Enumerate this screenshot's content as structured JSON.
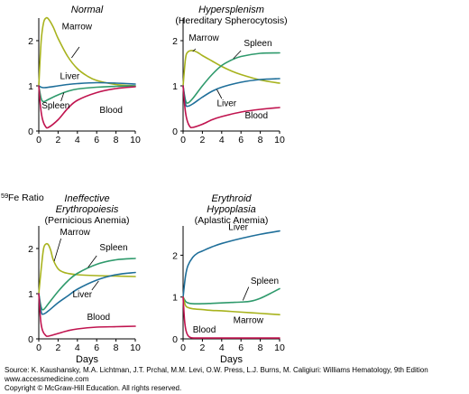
{
  "figure": {
    "y_axis_label": "Fe Ratio",
    "y_axis_label_superscript": "59",
    "x_axis_label": "Days"
  },
  "colors": {
    "Marrow": "#a8b31e",
    "Liver": "#1f6f9a",
    "Spleen": "#2f9a6c",
    "Blood": "#c0144f"
  },
  "chart_data": [
    {
      "type": "line",
      "title": "Normal",
      "subtitle": "",
      "xlabel": "",
      "ylabel": "Fe Ratio",
      "xlim": [
        0,
        10
      ],
      "ylim": [
        0,
        2.5
      ],
      "xticks": [
        0,
        2,
        4,
        6,
        8,
        10
      ],
      "yticks": [
        0,
        1,
        2
      ],
      "series": [
        {
          "name": "Marrow",
          "x": [
            0,
            0.25,
            0.5,
            0.75,
            1,
            1.5,
            2,
            3,
            4,
            5,
            6,
            8,
            10
          ],
          "y": [
            1.0,
            2.0,
            2.4,
            2.5,
            2.48,
            2.3,
            2.05,
            1.65,
            1.38,
            1.22,
            1.12,
            1.03,
            1.0
          ]
        },
        {
          "name": "Liver",
          "x": [
            0,
            0.25,
            0.5,
            1,
            2,
            3,
            4,
            6,
            8,
            10
          ],
          "y": [
            1.0,
            0.97,
            0.96,
            0.97,
            1.0,
            1.03,
            1.05,
            1.07,
            1.06,
            1.04
          ]
        },
        {
          "name": "Spleen",
          "x": [
            0,
            0.25,
            0.5,
            1,
            2,
            3,
            4,
            6,
            8,
            10
          ],
          "y": [
            1.0,
            0.72,
            0.65,
            0.7,
            0.8,
            0.88,
            0.93,
            0.97,
            0.99,
            1.0
          ]
        },
        {
          "name": "Blood",
          "x": [
            0,
            0.2,
            0.4,
            0.7,
            1,
            2,
            3,
            4,
            6,
            8,
            10
          ],
          "y": [
            1.0,
            0.5,
            0.25,
            0.1,
            0.08,
            0.25,
            0.5,
            0.68,
            0.85,
            0.94,
            0.98
          ]
        }
      ],
      "labels": [
        {
          "text": "Marrow",
          "x": 2.4,
          "y": 2.25
        },
        {
          "text": "Liver",
          "x": 2.2,
          "y": 1.15
        },
        {
          "text": "Spleen",
          "x": 0.3,
          "y": 0.5
        },
        {
          "text": "Blood",
          "x": 6.3,
          "y": 0.4
        }
      ],
      "leaders": [
        {
          "from": [
            4.2,
            1.86
          ],
          "to": [
            3.4,
            1.62
          ]
        },
        {
          "from": [
            2.3,
            0.66
          ],
          "to": [
            2.6,
            0.85
          ]
        }
      ]
    },
    {
      "type": "line",
      "title": "Hypersplenism",
      "subtitle": "(Hereditary Spherocytosis)",
      "xlabel": "",
      "ylabel": "",
      "xlim": [
        0,
        10
      ],
      "ylim": [
        0,
        2.5
      ],
      "xticks": [
        0,
        2,
        4,
        6,
        8,
        10
      ],
      "yticks": [
        0,
        1,
        2
      ],
      "series": [
        {
          "name": "Marrow",
          "x": [
            0,
            0.25,
            0.5,
            1,
            1.5,
            2,
            3,
            4,
            5,
            6,
            8,
            10
          ],
          "y": [
            1.0,
            1.6,
            1.75,
            1.78,
            1.74,
            1.67,
            1.55,
            1.43,
            1.33,
            1.25,
            1.13,
            1.06
          ]
        },
        {
          "name": "Spleen",
          "x": [
            0,
            0.25,
            0.5,
            1,
            2,
            3,
            4,
            5,
            6,
            8,
            10
          ],
          "y": [
            1.0,
            0.68,
            0.62,
            0.72,
            1.0,
            1.25,
            1.45,
            1.57,
            1.65,
            1.72,
            1.73
          ]
        },
        {
          "name": "Liver",
          "x": [
            0,
            0.25,
            0.5,
            1,
            2,
            3,
            4,
            6,
            8,
            10
          ],
          "y": [
            1.0,
            0.6,
            0.55,
            0.6,
            0.75,
            0.88,
            0.97,
            1.08,
            1.14,
            1.16
          ]
        },
        {
          "name": "Blood",
          "x": [
            0,
            0.2,
            0.4,
            0.7,
            1,
            2,
            3,
            4,
            6,
            8,
            10
          ],
          "y": [
            1.0,
            0.5,
            0.25,
            0.1,
            0.08,
            0.15,
            0.25,
            0.32,
            0.42,
            0.48,
            0.52
          ]
        }
      ],
      "labels": [
        {
          "text": "Marrow",
          "x": 0.6,
          "y": 2.0
        },
        {
          "text": "Spleen",
          "x": 6.3,
          "y": 1.88
        },
        {
          "text": "Liver",
          "x": 3.5,
          "y": 0.55
        },
        {
          "text": "Blood",
          "x": 6.4,
          "y": 0.28
        }
      ],
      "leaders": [
        {
          "from": [
            1.3,
            1.82
          ],
          "to": [
            1.0,
            1.76
          ]
        },
        {
          "from": [
            6.0,
            1.78
          ],
          "to": [
            5.2,
            1.6
          ]
        },
        {
          "from": [
            4.0,
            0.72
          ],
          "to": [
            3.5,
            0.92
          ]
        }
      ]
    },
    {
      "type": "line",
      "title": "Ineffective",
      "subtitle": "Erythropoiesis",
      "subtitle2": "(Pernicious Anemia)",
      "xlabel": "Days",
      "ylabel": "",
      "xlim": [
        0,
        10
      ],
      "ylim": [
        0,
        2.5
      ],
      "xticks": [
        0,
        2,
        4,
        6,
        8,
        10
      ],
      "yticks": [
        0,
        1,
        2
      ],
      "series": [
        {
          "name": "Marrow",
          "x": [
            0,
            0.25,
            0.5,
            0.75,
            1,
            1.25,
            1.5,
            2,
            2.5,
            3,
            4,
            6,
            8,
            10
          ],
          "y": [
            1.0,
            1.55,
            2.0,
            2.1,
            2.08,
            1.95,
            1.75,
            1.55,
            1.48,
            1.45,
            1.42,
            1.4,
            1.39,
            1.38
          ]
        },
        {
          "name": "Spleen",
          "x": [
            0,
            0.25,
            0.5,
            1,
            2,
            3,
            4,
            6,
            8,
            10
          ],
          "y": [
            1.0,
            0.7,
            0.65,
            0.78,
            1.05,
            1.28,
            1.45,
            1.65,
            1.75,
            1.78
          ]
        },
        {
          "name": "Liver",
          "x": [
            0,
            0.25,
            0.5,
            1,
            2,
            3,
            4,
            6,
            8,
            10
          ],
          "y": [
            1.0,
            0.6,
            0.55,
            0.62,
            0.8,
            0.95,
            1.1,
            1.3,
            1.42,
            1.47
          ]
        },
        {
          "name": "Blood",
          "x": [
            0,
            0.2,
            0.4,
            0.7,
            1,
            2,
            3,
            4,
            6,
            8,
            10
          ],
          "y": [
            1.0,
            0.4,
            0.18,
            0.08,
            0.06,
            0.12,
            0.18,
            0.22,
            0.26,
            0.27,
            0.28
          ]
        }
      ],
      "labels": [
        {
          "text": "Marrow",
          "x": 2.2,
          "y": 2.3
        },
        {
          "text": "Spleen",
          "x": 6.3,
          "y": 1.96
        },
        {
          "text": "Liver",
          "x": 3.5,
          "y": 0.92
        },
        {
          "text": "Blood",
          "x": 5.0,
          "y": 0.42
        }
      ],
      "leaders": [
        {
          "from": [
            2.3,
            2.22
          ],
          "to": [
            1.6,
            1.72
          ]
        },
        {
          "from": [
            6.0,
            1.84
          ],
          "to": [
            5.1,
            1.58
          ]
        },
        {
          "from": [
            5.5,
            1.08
          ],
          "to": [
            6.2,
            1.28
          ]
        }
      ]
    },
    {
      "type": "line",
      "title": "Erythroid",
      "subtitle": "Hypoplasia",
      "subtitle2": "(Aplastic Anemia)",
      "xlabel": "Days",
      "ylabel": "",
      "xlim": [
        0,
        10
      ],
      "ylim": [
        0,
        2.7
      ],
      "xticks": [
        0,
        2,
        4,
        6,
        8,
        10
      ],
      "yticks": [
        0,
        1,
        2
      ],
      "series": [
        {
          "name": "Liver",
          "x": [
            0,
            0.25,
            0.5,
            1,
            1.5,
            2,
            3,
            4,
            6,
            8,
            10
          ],
          "y": [
            1.0,
            1.5,
            1.75,
            1.95,
            2.05,
            2.1,
            2.2,
            2.28,
            2.4,
            2.5,
            2.58
          ]
        },
        {
          "name": "Spleen",
          "x": [
            0,
            0.25,
            0.5,
            1,
            2,
            3,
            4,
            5,
            6,
            7,
            8,
            9,
            10
          ],
          "y": [
            1.0,
            0.9,
            0.86,
            0.84,
            0.84,
            0.85,
            0.86,
            0.87,
            0.88,
            0.9,
            0.97,
            1.08,
            1.2
          ]
        },
        {
          "name": "Marrow",
          "x": [
            0,
            0.25,
            0.5,
            1,
            2,
            3,
            4,
            6,
            8,
            10
          ],
          "y": [
            1.0,
            0.8,
            0.75,
            0.72,
            0.7,
            0.68,
            0.67,
            0.64,
            0.61,
            0.58
          ]
        },
        {
          "name": "Blood",
          "x": [
            0,
            0.15,
            0.3,
            0.5,
            0.8,
            1.2,
            2,
            3,
            4,
            6,
            8,
            10
          ],
          "y": [
            1.0,
            0.45,
            0.2,
            0.08,
            0.03,
            0.02,
            0.02,
            0.02,
            0.02,
            0.02,
            0.02,
            0.02
          ]
        }
      ],
      "labels": [
        {
          "text": "Liver",
          "x": 4.7,
          "y": 2.6
        },
        {
          "text": "Spleen",
          "x": 7.0,
          "y": 1.32
        },
        {
          "text": "Marrow",
          "x": 5.2,
          "y": 0.38
        },
        {
          "text": "Blood",
          "x": 1.0,
          "y": 0.15
        }
      ],
      "leaders": [
        {
          "from": [
            6.8,
            1.24
          ],
          "to": [
            6.2,
            0.92
          ]
        }
      ]
    }
  ],
  "footer": {
    "source": "Source: K. Kaushansky, M.A. Lichtman, J.T. Prchal, M.M. Levi, O.W. Press, L.J. Burns, M. Caligiuri: Williams Hematology, 9th Edition",
    "website": "www.accessmedicine.com",
    "copyright": "Copyright © McGraw-Hill Education.  All rights reserved."
  }
}
